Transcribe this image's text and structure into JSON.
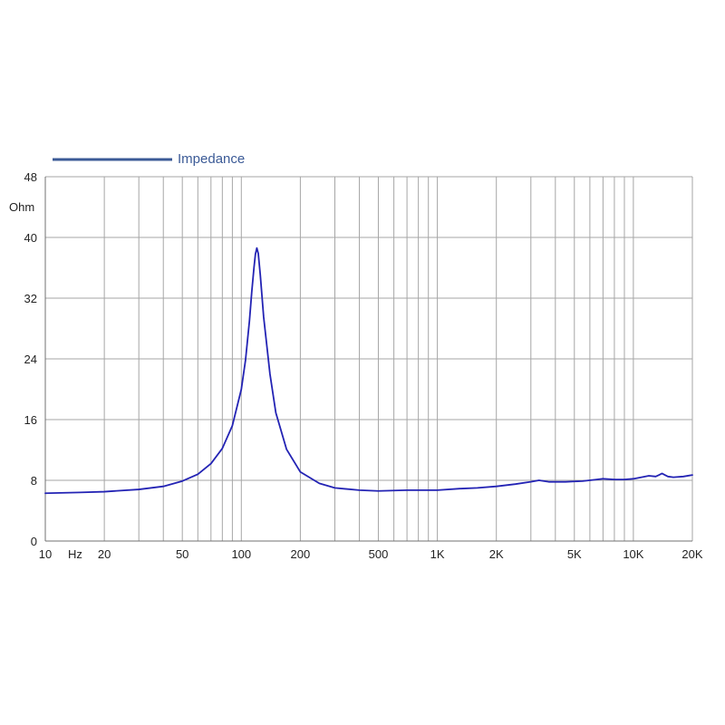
{
  "colors": {
    "line": "#2323b4",
    "legend": "#3b5a96",
    "grid": "#a6a6a6",
    "axis": "#707070",
    "background": "#ffffff"
  },
  "legend": {
    "label": "Impedance"
  },
  "chart_data": {
    "type": "line",
    "x_scale": "log",
    "xlim": [
      10,
      20000
    ],
    "ylim": [
      0,
      48
    ],
    "grid": true,
    "legend_placement": "top-left",
    "y_unit": "Ohm",
    "x_unit": "Hz",
    "y_ticks": [
      0,
      8,
      16,
      24,
      32,
      40,
      48
    ],
    "x_tick_labels": [
      {
        "value": 10,
        "label": "10"
      },
      {
        "value": 20,
        "label": "20"
      },
      {
        "value": 50,
        "label": "50"
      },
      {
        "value": 100,
        "label": "100"
      },
      {
        "value": 200,
        "label": "200"
      },
      {
        "value": 500,
        "label": "500"
      },
      {
        "value": 1000,
        "label": "1K"
      },
      {
        "value": 2000,
        "label": "2K"
      },
      {
        "value": 5000,
        "label": "5K"
      },
      {
        "value": 10000,
        "label": "10K"
      },
      {
        "value": 20000,
        "label": "20K"
      }
    ],
    "series": [
      {
        "name": "Impedance",
        "x": [
          10,
          15,
          20,
          30,
          40,
          50,
          60,
          70,
          80,
          90,
          100,
          105,
          110,
          113,
          116,
          118,
          120,
          122,
          125,
          130,
          140,
          150,
          170,
          200,
          250,
          300,
          400,
          500,
          700,
          1000,
          1300,
          1600,
          2000,
          2500,
          3000,
          3300,
          3700,
          4500,
          5500,
          6500,
          7000,
          8000,
          9000,
          10000,
          11000,
          12000,
          13000,
          13500,
          14000,
          14500,
          15000,
          16000,
          18000,
          20000
        ],
        "y": [
          6.3,
          6.4,
          6.5,
          6.8,
          7.2,
          7.9,
          8.8,
          10.2,
          12.2,
          15.2,
          20.0,
          23.8,
          29.0,
          32.8,
          36.0,
          37.8,
          38.6,
          37.9,
          35.0,
          29.5,
          22.0,
          16.9,
          12.1,
          9.1,
          7.6,
          7.0,
          6.7,
          6.6,
          6.7,
          6.7,
          6.9,
          7.0,
          7.2,
          7.5,
          7.8,
          8.0,
          7.8,
          7.8,
          7.9,
          8.1,
          8.2,
          8.1,
          8.1,
          8.2,
          8.4,
          8.6,
          8.5,
          8.7,
          8.9,
          8.7,
          8.5,
          8.4,
          8.5,
          8.7
        ]
      }
    ]
  }
}
